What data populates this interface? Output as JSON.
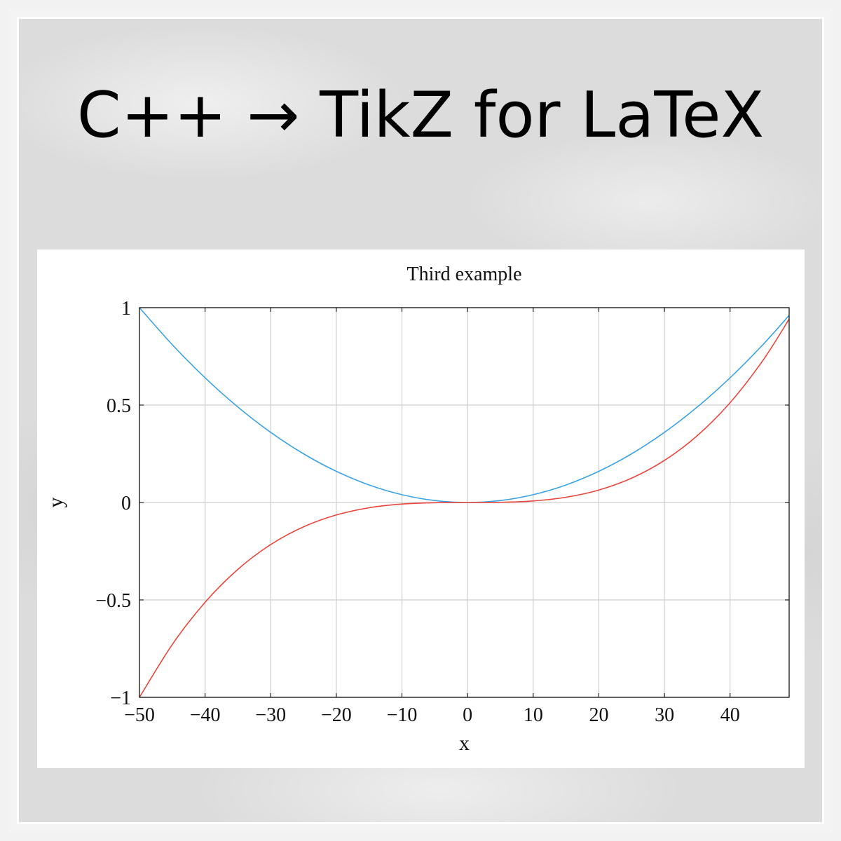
{
  "headline": {
    "text": "C++ → TikZ for LaTeX"
  },
  "chart_data": {
    "type": "line",
    "title": "Third example",
    "xlabel": "x",
    "ylabel": "y",
    "xlim": [
      -50,
      49
    ],
    "ylim": [
      -1,
      1
    ],
    "x_ticks": [
      -50,
      -40,
      -30,
      -20,
      -10,
      0,
      10,
      20,
      30,
      40
    ],
    "x_tick_labels": [
      "−50",
      "−40",
      "−30",
      "−20",
      "−10",
      "0",
      "10",
      "20",
      "30",
      "40"
    ],
    "y_ticks": [
      -1,
      -0.5,
      0,
      0.5,
      1
    ],
    "y_tick_labels": [
      "−1",
      "−0.5",
      "0",
      "0.5",
      "1"
    ],
    "grid": true,
    "series": [
      {
        "color": "#3ba3e3",
        "x": [
          -50,
          -45,
          -40,
          -35,
          -30,
          -25,
          -20,
          -15,
          -10,
          -5,
          0,
          5,
          10,
          15,
          20,
          25,
          30,
          35,
          40,
          45,
          49
        ],
        "y": [
          1.0,
          0.81,
          0.64,
          0.49,
          0.36,
          0.25,
          0.16,
          0.09,
          0.04,
          0.01,
          0.0,
          0.01,
          0.04,
          0.09,
          0.16,
          0.25,
          0.36,
          0.49,
          0.64,
          0.81,
          0.9604
        ]
      },
      {
        "color": "#e8453c",
        "x": [
          -50,
          -45,
          -40,
          -35,
          -30,
          -25,
          -20,
          -15,
          -10,
          -5,
          0,
          5,
          10,
          15,
          20,
          25,
          30,
          35,
          40,
          45,
          49
        ],
        "y": [
          -1.0,
          -0.729,
          -0.512,
          -0.343,
          -0.216,
          -0.125,
          -0.064,
          -0.027,
          -0.008,
          -0.001,
          0.0,
          0.001,
          0.008,
          0.027,
          0.064,
          0.125,
          0.216,
          0.343,
          0.512,
          0.729,
          0.9412
        ]
      }
    ]
  }
}
